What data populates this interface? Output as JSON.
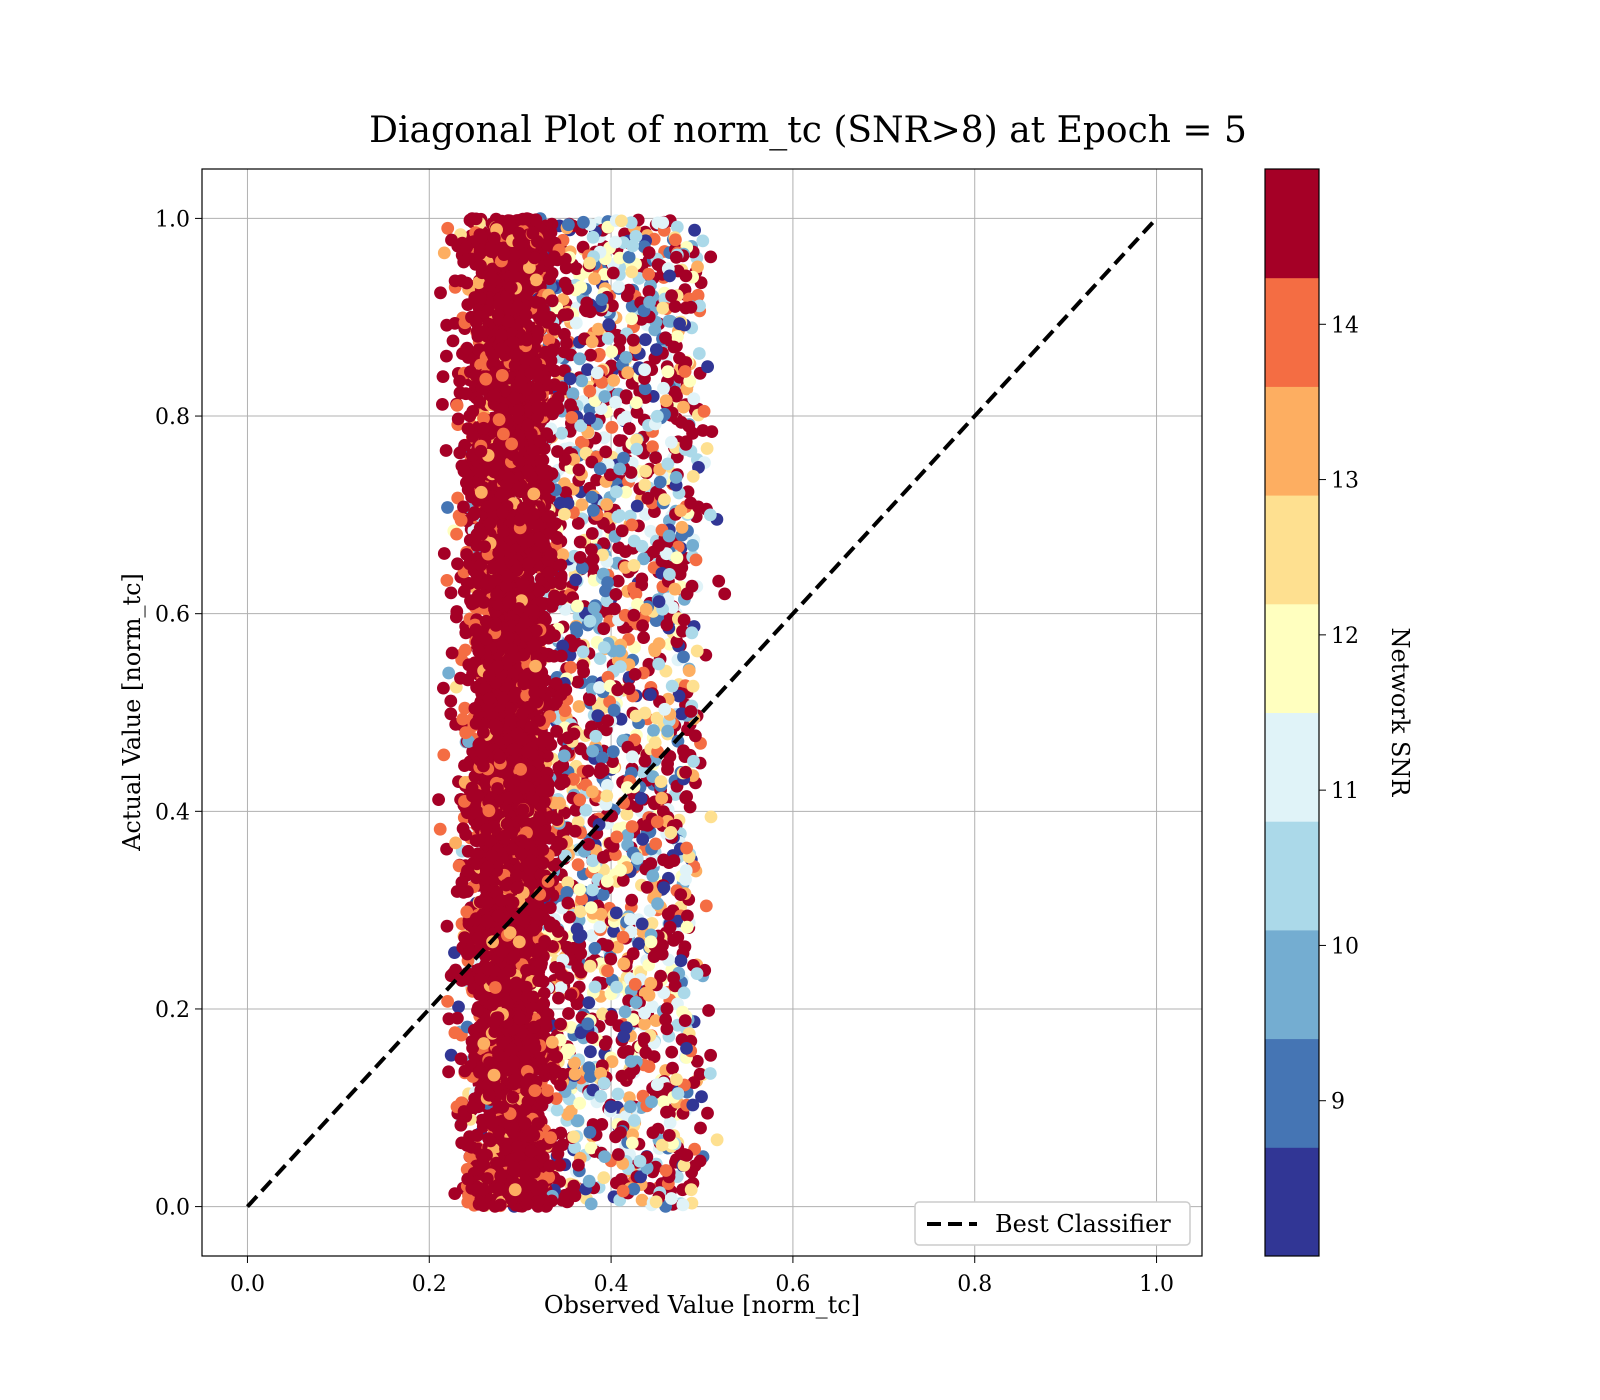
{
  "chart_data": {
    "type": "scatter",
    "title": "Diagonal Plot of norm_tc (SNR>8) at Epoch = 5",
    "xlabel": "Observed Value [norm_tc]",
    "ylabel": "Actual Value [norm_tc]",
    "xlim": [
      -0.05,
      1.05
    ],
    "ylim": [
      -0.05,
      1.05
    ],
    "xticks": [
      "0.0",
      "0.2",
      "0.4",
      "0.6",
      "0.8",
      "1.0"
    ],
    "yticks": [
      "0.0",
      "0.2",
      "0.4",
      "0.6",
      "0.8",
      "1.0"
    ],
    "grid": true,
    "reference_line": {
      "label": "Best Classifier",
      "from": [
        0,
        0
      ],
      "to": [
        1,
        1
      ],
      "style": "dashed",
      "color": "#000000"
    },
    "legend": {
      "placement": "lower-right",
      "entries": [
        "Best Classifier"
      ]
    },
    "colorbar": {
      "label": "Network SNR",
      "range": [
        8,
        15
      ],
      "ticks": [
        "9",
        "10",
        "11",
        "12",
        "13",
        "14"
      ],
      "tick_values": [
        9,
        10,
        11,
        12,
        13,
        14
      ],
      "colors": [
        "#313695",
        "#4575b4",
        "#74add1",
        "#abd9e9",
        "#e0f3f8",
        "#ffffbf",
        "#fee090",
        "#fdae61",
        "#f46d43",
        "#d73027",
        "#a50026"
      ]
    },
    "scatter_distribution": {
      "observed_range": [
        0.2,
        0.54
      ],
      "actual_range": [
        0.0,
        1.0
      ],
      "dense_core_observed": [
        0.25,
        0.33
      ],
      "dense_core_snr": "high (>14)",
      "outer_region_snr": "mixed (8-14)"
    }
  }
}
